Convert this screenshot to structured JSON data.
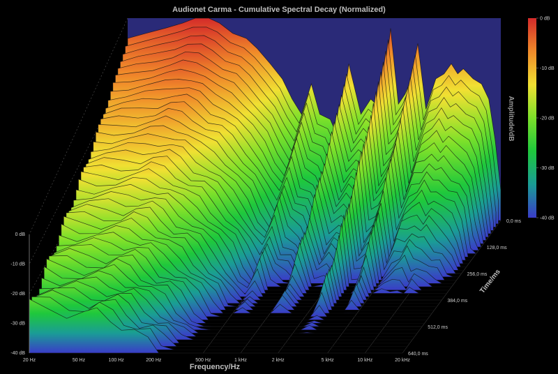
{
  "chart_data": {
    "type": "area",
    "title": "Audionet Carma - Cumulative Spectral Decay (Normalized)",
    "xlabel": "Frequency/Hz",
    "ylabel_right": "Amplitude/dB",
    "zlabel": "Time/ms",
    "x_scale": "log",
    "xlim": [
      20,
      20000
    ],
    "ylim": [
      -40,
      0
    ],
    "zlim": [
      0,
      640
    ],
    "x_ticks": [
      "20 Hz",
      "50 Hz",
      "100 Hz",
      "200 Hz",
      "500 Hz",
      "1 kHz",
      "2 kHz",
      "5 kHz",
      "10 kHz",
      "20 kHz"
    ],
    "x_tick_values": [
      20,
      50,
      100,
      200,
      500,
      1000,
      2000,
      5000,
      10000,
      20000
    ],
    "y_ticks": [
      "0 dB",
      "-10 dB",
      "-20 dB",
      "-30 dB",
      "-40 dB"
    ],
    "y_tick_values": [
      0,
      -10,
      -20,
      -30,
      -40
    ],
    "z_ticks": [
      "0,0 ms",
      "128,0 ms",
      "256,0 ms",
      "384,0 ms",
      "512,0 ms",
      "640,0 ms"
    ],
    "z_tick_values": [
      0,
      128,
      256,
      384,
      512,
      640
    ],
    "colorbar_ticks": [
      "0 dB",
      "-10 dB",
      "-20 dB",
      "-30 dB",
      "-40 dB"
    ],
    "colormap": [
      "#d42a2a",
      "#f08a2a",
      "#f0e032",
      "#7ce02a",
      "#1ec83c",
      "#1a9c96",
      "#3a3cc8"
    ],
    "background_color": "#000000",
    "back_wall_color": "#2a2a78",
    "grid": true,
    "initial_response": {
      "freq_hz": [
        20,
        28,
        40,
        55,
        70,
        90,
        110,
        140,
        180,
        220,
        280,
        350,
        420,
        500,
        600,
        700,
        850,
        1000,
        1200,
        1500,
        1800,
        2200,
        2600,
        3000,
        3400,
        3800,
        4300,
        5000,
        6000,
        7000,
        8000,
        9000,
        10000,
        12000,
        14000,
        16000,
        18000,
        20000
      ],
      "level_db": [
        -4,
        -3,
        -2,
        -1,
        0,
        0,
        -1,
        -3,
        -4,
        -6,
        -9,
        -12,
        -16,
        -19,
        -13,
        -19,
        -20,
        -24,
        -9,
        -19,
        -16,
        -18,
        -2,
        -17,
        -15,
        -12,
        -5,
        -18,
        -12,
        -11,
        -9,
        -11,
        -10,
        -12,
        -13,
        -16,
        -24,
        -34
      ]
    },
    "decay_db_per_ms": 0.09,
    "slices": 41
  }
}
